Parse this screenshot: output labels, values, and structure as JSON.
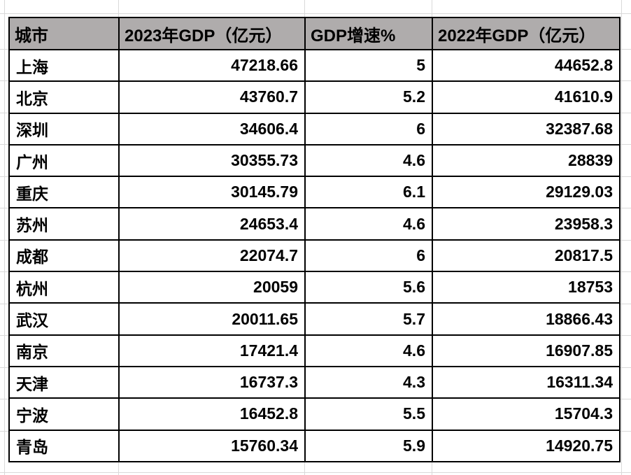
{
  "table": {
    "headers": [
      "城市",
      "2023年GDP（亿元）",
      "GDP增速%",
      "2022年GDP（亿元）"
    ],
    "rows": [
      {
        "city": "上海",
        "gdp_2023": "47218.66",
        "growth_pct": "5",
        "gdp_2022": "44652.8"
      },
      {
        "city": "北京",
        "gdp_2023": "43760.7",
        "growth_pct": "5.2",
        "gdp_2022": "41610.9"
      },
      {
        "city": "深圳",
        "gdp_2023": "34606.4",
        "growth_pct": "6",
        "gdp_2022": "32387.68"
      },
      {
        "city": "广州",
        "gdp_2023": "30355.73",
        "growth_pct": "4.6",
        "gdp_2022": "28839"
      },
      {
        "city": "重庆",
        "gdp_2023": "30145.79",
        "growth_pct": "6.1",
        "gdp_2022": "29129.03"
      },
      {
        "city": "苏州",
        "gdp_2023": "24653.4",
        "growth_pct": "4.6",
        "gdp_2022": "23958.3"
      },
      {
        "city": "成都",
        "gdp_2023": "22074.7",
        "growth_pct": "6",
        "gdp_2022": "20817.5"
      },
      {
        "city": "杭州",
        "gdp_2023": "20059",
        "growth_pct": "5.6",
        "gdp_2022": "18753"
      },
      {
        "city": "武汉",
        "gdp_2023": "20011.65",
        "growth_pct": "5.7",
        "gdp_2022": "18866.43"
      },
      {
        "city": "南京",
        "gdp_2023": "17421.4",
        "growth_pct": "4.6",
        "gdp_2022": "16907.85"
      },
      {
        "city": "天津",
        "gdp_2023": "16737.3",
        "growth_pct": "4.3",
        "gdp_2022": "16311.34"
      },
      {
        "city": "宁波",
        "gdp_2023": "16452.8",
        "growth_pct": "5.5",
        "gdp_2022": "15704.3"
      },
      {
        "city": "青岛",
        "gdp_2023": "15760.34",
        "growth_pct": "5.9",
        "gdp_2022": "14920.75"
      }
    ]
  },
  "colors": {
    "header_bg": "#afacac",
    "table_border": "#000000",
    "gridline": "#d9d9d9",
    "text": "#000000",
    "background": "#ffffff"
  }
}
